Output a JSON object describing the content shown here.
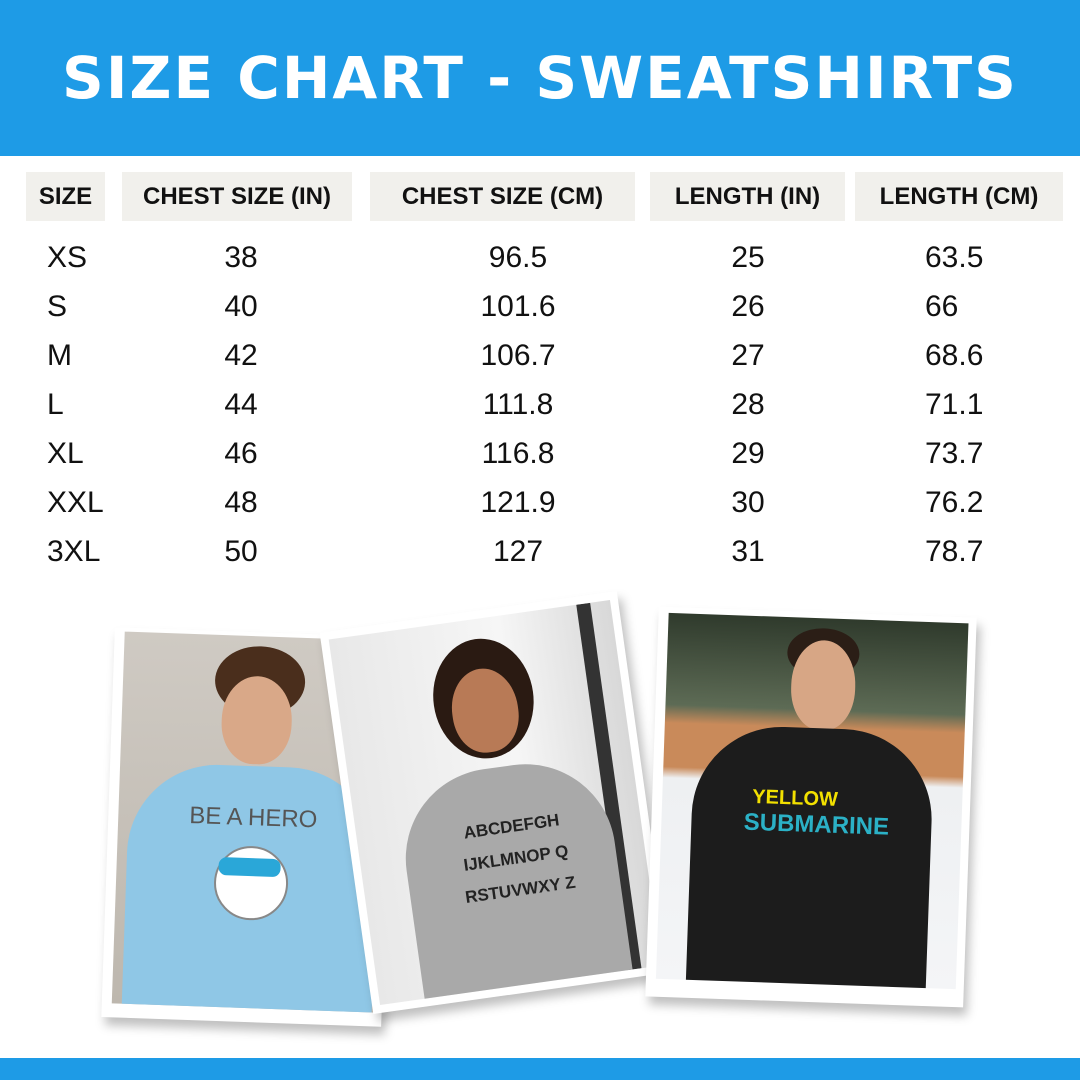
{
  "title": "SIZE CHART - SWEATSHIRTS",
  "colors": {
    "brand_blue": "#1e9be6",
    "header_cell_bg": "#f1f0ec",
    "text": "#111111"
  },
  "table": {
    "headers": [
      "SIZE",
      "CHEST SIZE (IN)",
      "CHEST SIZE (CM)",
      "LENGTH (IN)",
      "LENGTH (CM)"
    ],
    "rows": [
      [
        "XS",
        "38",
        "96.5",
        "25",
        "63.5"
      ],
      [
        "S",
        "40",
        "101.6",
        "26",
        "66"
      ],
      [
        "M",
        "42",
        "106.7",
        "27",
        "68.6"
      ],
      [
        "L",
        "44",
        "111.8",
        "28",
        "71.1"
      ],
      [
        "XL",
        "46",
        "116.8",
        "29",
        "73.7"
      ],
      [
        "XXL",
        "48",
        "121.9",
        "30",
        "76.2"
      ],
      [
        "3XL",
        "50",
        "127",
        "31",
        "78.7"
      ]
    ]
  },
  "photos": [
    {
      "shirt_color": "light blue",
      "print": "BE A HERO"
    },
    {
      "shirt_color": "grey",
      "print": [
        "ABCDEFGH",
        "IJKLMNOP Q",
        "RSTUVWXY Z"
      ]
    },
    {
      "shirt_color": "black",
      "print": [
        "YELLOW",
        "SUBMARINE"
      ]
    }
  ]
}
